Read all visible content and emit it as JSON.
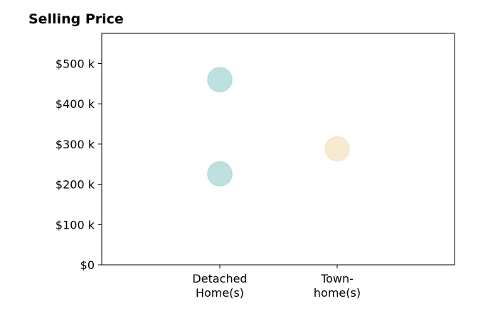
{
  "chart_data": {
    "type": "scatter",
    "title": "Selling Price",
    "categories": [
      [
        "Detached",
        "Home(s)"
      ],
      [
        "Town-",
        "home(s)"
      ]
    ],
    "y_ticks": [
      0,
      100,
      200,
      300,
      400,
      500
    ],
    "y_tick_labels": [
      "$0",
      "$100 k",
      "$200 k",
      "$300 k",
      "$400 k",
      "$500 k"
    ],
    "ylim": [
      0,
      575
    ],
    "grid": false,
    "points": [
      {
        "category_index": 0,
        "y": 460,
        "color": "#b2dcd8"
      },
      {
        "category_index": 0,
        "y": 226,
        "color": "#b2dcd8"
      },
      {
        "category_index": 1,
        "y": 288,
        "color": "#f5e6c8"
      }
    ],
    "colors": {
      "detached": "#b2dcd8",
      "townhome": "#f5e6c8"
    }
  }
}
